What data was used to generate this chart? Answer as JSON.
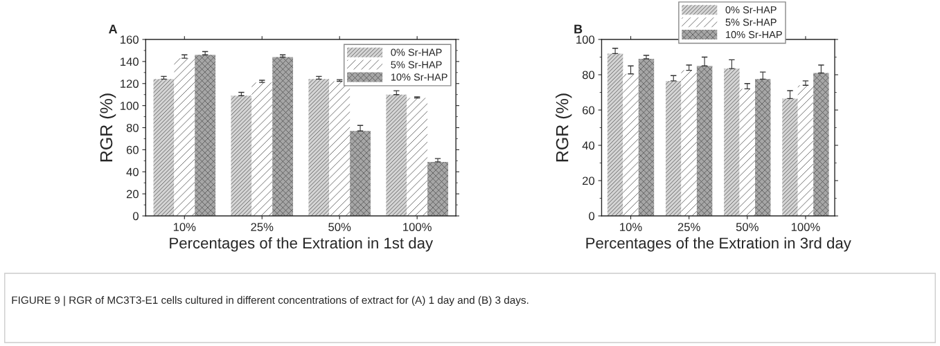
{
  "chart_data": [
    {
      "type": "bar",
      "title": "A",
      "xlabel": "Percentages of the Extration in 1st day",
      "ylabel": "RGR (%)",
      "categories": [
        "10%",
        "25%",
        "50%",
        "100%"
      ],
      "ylim": [
        0,
        160
      ],
      "yticks": [
        0,
        20,
        40,
        60,
        80,
        100,
        120,
        140,
        160
      ],
      "legend": "top right",
      "annotations": [
        "FIGURE 9 | RGR of MC3T3-E1 cells cultured in different concentrations of extract for (A) 1 day and (B) 3 days."
      ],
      "series": [
        {
          "name": "0% Sr-HAP",
          "color": "#d4d4d4",
          "values": [
            124,
            109,
            124,
            110
          ],
          "errors": [
            2.5,
            3,
            2.5,
            3.5
          ]
        },
        {
          "name": "5% Sr-HAP",
          "color": "#ffffff",
          "values": [
            143,
            121,
            122,
            107
          ],
          "errors": [
            3,
            2,
            1.5,
            1
          ]
        },
        {
          "name": "10% Sr-HAP",
          "color": "#a6a6a6",
          "values": [
            146,
            144,
            77,
            49
          ],
          "errors": [
            3,
            2,
            5,
            3
          ]
        }
      ]
    },
    {
      "type": "bar",
      "title": "B",
      "xlabel": "Percentages of the Extration in 3rd day",
      "ylabel": "RGR (%)",
      "categories": [
        "10%",
        "25%",
        "50%",
        "100%"
      ],
      "ylim": [
        0,
        100
      ],
      "yticks": [
        0,
        20,
        40,
        60,
        80,
        100
      ],
      "legend": "top",
      "series": [
        {
          "name": "0% Sr-HAP",
          "color": "#d4d4d4",
          "values": [
            92,
            76.5,
            83.5,
            66.5
          ],
          "errors": [
            3,
            3,
            5,
            4.5
          ]
        },
        {
          "name": "5% Sr-HAP",
          "color": "#ffffff",
          "values": [
            80.5,
            82.5,
            72,
            74
          ],
          "errors": [
            4.5,
            3,
            3,
            2.5
          ]
        },
        {
          "name": "10% Sr-HAP",
          "color": "#a6a6a6",
          "values": [
            89,
            85,
            77.5,
            81
          ],
          "errors": [
            2,
            5,
            4,
            4.5
          ]
        }
      ]
    }
  ]
}
